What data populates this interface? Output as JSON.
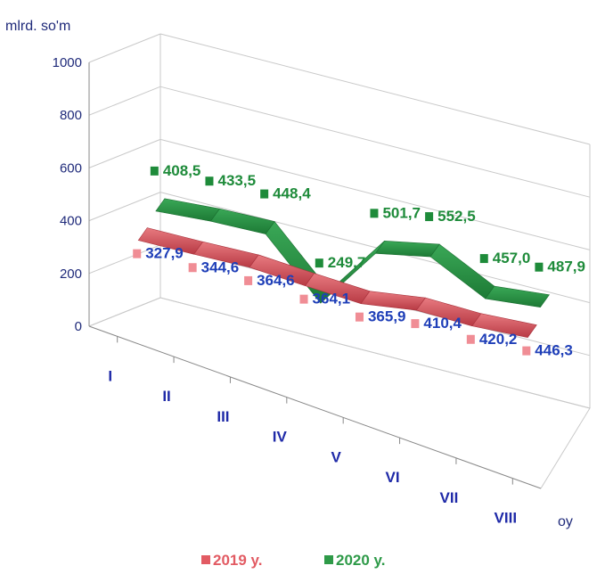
{
  "chart_data": {
    "type": "line",
    "ylabel": "mlrd. so'm",
    "xlabel": "oy",
    "ylim": [
      0,
      1000
    ],
    "yticks": [
      "0",
      "200",
      "400",
      "600",
      "800",
      "1000"
    ],
    "categories": [
      "I",
      "II",
      "III",
      "IV",
      "V",
      "VI",
      "VII",
      "VIII"
    ],
    "series": [
      {
        "name": "2019 y.",
        "color": "#e25b63",
        "values": [
          327.9,
          344.6,
          364.6,
          364.1,
          365.9,
          410.4,
          420.2,
          446.3
        ],
        "labels": [
          "327,9",
          "344,6",
          "364,6",
          "364,1",
          "365,9",
          "410,4",
          "420,2",
          "446,3"
        ]
      },
      {
        "name": "2020 y.",
        "color": "#2e9a48",
        "values": [
          408.5,
          433.5,
          448.4,
          249.7,
          501.7,
          552.5,
          457.0,
          487.9
        ],
        "labels": [
          "408,5",
          "433,5",
          "448,4",
          "249,7",
          "501,7",
          "552,5",
          "457,0",
          "487,9"
        ]
      }
    ],
    "legend": {
      "position": "bottom",
      "items": [
        "2019 y.",
        "2020 y."
      ]
    },
    "grid": true
  }
}
